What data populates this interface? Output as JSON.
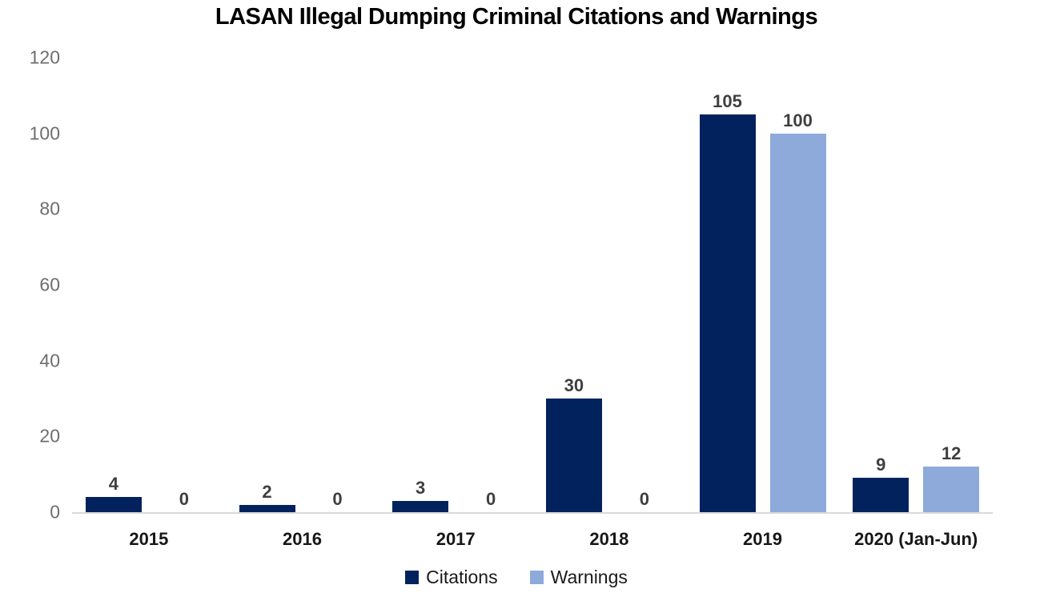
{
  "chart_data": {
    "type": "bar",
    "title": "LASAN Illegal Dumping Criminal Citations and Warnings",
    "categories": [
      "2015",
      "2016",
      "2017",
      "2018",
      "2019",
      "2020 (Jan-Jun)"
    ],
    "series": [
      {
        "name": "Citations",
        "color": "#02225E",
        "values": [
          4,
          2,
          3,
          30,
          105,
          9
        ]
      },
      {
        "name": "Warnings",
        "color": "#8EAADB",
        "values": [
          0,
          0,
          0,
          0,
          100,
          12
        ]
      }
    ],
    "ylim": [
      0,
      120
    ],
    "yticks": [
      0,
      20,
      40,
      60,
      80,
      100,
      120
    ],
    "xlabel": "",
    "ylabel": "",
    "grid": false,
    "data_labels": true,
    "legend_position": "bottom",
    "colors": {
      "title": "#000000",
      "data_label": "#3F3F3F",
      "y_tick_label": "#6E6E6E",
      "x_tick_label": "#171717",
      "axis_line": "#D9D9D9",
      "background": "#FFFFFF"
    }
  }
}
